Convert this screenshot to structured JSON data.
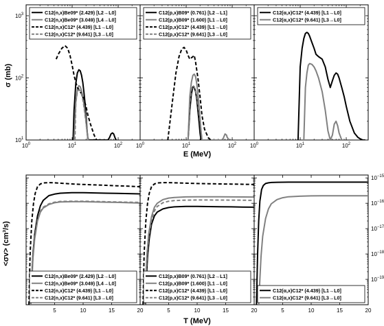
{
  "figure": {
    "top_xlabel": "E (MeV)",
    "top_ylabel": "σ (mb)",
    "bottom_xlabel": "T (MeV)",
    "bottom_ylabel": "<σv> (cm³/s)"
  },
  "colors": {
    "black": "#000000",
    "gray": "#808080"
  },
  "chart_data": [
    {
      "type": "line",
      "panel": "top-left",
      "xscale": "log",
      "yscale": "log",
      "xlim": [
        1,
        300
      ],
      "ylim": [
        10,
        1500
      ],
      "xticks": [
        {
          "v": 1,
          "b": "10",
          "e": "0"
        },
        {
          "v": 10,
          "b": "10",
          "e": "1"
        },
        {
          "v": 100,
          "b": "10",
          "e": "2"
        }
      ],
      "yticks": [
        {
          "v": 10,
          "b": "10",
          "e": "1"
        },
        {
          "v": 100,
          "b": "10",
          "e": "2"
        },
        {
          "v": 1000,
          "b": "10",
          "e": "3"
        }
      ],
      "legend_position": "top",
      "series": [
        {
          "name": "C12(n,x)Be09* (2.429) [L2→L0]",
          "color": "black",
          "dash": "solid",
          "x": [
            10.5,
            11,
            12,
            13,
            14,
            15,
            16,
            17,
            18,
            19,
            20,
            21,
            22,
            60,
            65,
            70,
            75,
            80,
            85,
            90
          ],
          "y": [
            10,
            30,
            80,
            120,
            135,
            130,
            110,
            85,
            60,
            40,
            25,
            15,
            10,
            10,
            11,
            12.5,
            13,
            12.5,
            11,
            10
          ]
        },
        {
          "name": "C12(n,x)Be09* (3.049) [L4→L0]",
          "color": "gray",
          "dash": "solid",
          "x": [
            11,
            12,
            13,
            14,
            15,
            16,
            17,
            18,
            19,
            20,
            21,
            22
          ],
          "y": [
            10,
            40,
            65,
            75,
            72,
            62,
            50,
            38,
            28,
            20,
            14,
            10
          ]
        },
        {
          "name": "C12(n,x)C12* (4.439) [L1→L0]",
          "color": "black",
          "dash": "dash",
          "x": [
            4.5,
            5,
            6,
            7,
            8,
            9,
            10,
            11,
            12,
            13,
            14,
            15,
            16,
            18,
            20,
            22,
            25,
            30,
            34
          ],
          "y": [
            200,
            240,
            300,
            330,
            300,
            230,
            160,
            110,
            85,
            70,
            65,
            60,
            55,
            45,
            35,
            25,
            18,
            12,
            10
          ]
        },
        {
          "name": "C12(n,x)C12* (9.641) [L3→L0]",
          "color": "gray",
          "dash": "dash",
          "x": [
            11.5,
            12,
            13,
            14,
            15,
            16,
            17,
            18,
            19,
            20,
            21,
            22,
            23
          ],
          "y": [
            10,
            40,
            60,
            64,
            62,
            55,
            45,
            35,
            26,
            19,
            14,
            11,
            10
          ]
        }
      ]
    },
    {
      "type": "line",
      "panel": "top-middle",
      "xscale": "log",
      "yscale": "log",
      "xlim": [
        1,
        300
      ],
      "ylim": [
        10,
        1500
      ],
      "xticks": [
        {
          "v": 1,
          "b": "10",
          "e": "0"
        },
        {
          "v": 10,
          "b": "10",
          "e": "1"
        },
        {
          "v": 100,
          "b": "10",
          "e": "2"
        }
      ],
      "yticks": [],
      "legend_position": "top",
      "series": [
        {
          "name": "C12(p,x)B09* (0.761) [L2→L1]",
          "color": "black",
          "dash": "solid",
          "x": [
            11,
            12,
            13,
            14,
            15,
            16,
            17,
            18,
            19,
            20,
            21
          ],
          "y": [
            10,
            30,
            55,
            72,
            70,
            60,
            45,
            30,
            20,
            13,
            10
          ]
        },
        {
          "name": "C12(p,x)B09* (1.600) [L1→L0]",
          "color": "gray",
          "dash": "solid",
          "x": [
            11,
            12,
            13,
            14,
            15,
            16,
            17,
            18,
            19,
            20,
            21,
            22,
            62,
            65,
            70,
            75,
            78,
            82,
            85
          ],
          "y": [
            10,
            50,
            85,
            110,
            115,
            105,
            80,
            55,
            35,
            22,
            14,
            10,
            10,
            11,
            12.5,
            12,
            11,
            10.5,
            10
          ]
        },
        {
          "name": "C12(p,x)C12* (4.439) [L1→L0]",
          "color": "black",
          "dash": "dash",
          "x": [
            4,
            5,
            6,
            7,
            8,
            9,
            10,
            11,
            12,
            13,
            14,
            15,
            16,
            18,
            20,
            22,
            25,
            30,
            34
          ],
          "y": [
            10,
            40,
            120,
            220,
            290,
            310,
            280,
            230,
            200,
            210,
            220,
            230,
            180,
            100,
            50,
            25,
            15,
            11,
            10
          ]
        },
        {
          "name": "C12(p,x)C12* (9.641) [L3→L0]",
          "color": "gray",
          "dash": "dash",
          "x": [
            11,
            12,
            13,
            14,
            15,
            16,
            17,
            18,
            19,
            20,
            21,
            22
          ],
          "y": [
            10,
            40,
            65,
            75,
            72,
            62,
            50,
            38,
            28,
            20,
            14,
            10
          ]
        }
      ]
    },
    {
      "type": "line",
      "panel": "top-right",
      "xscale": "log",
      "yscale": "log",
      "xlim": [
        1,
        300
      ],
      "ylim": [
        10,
        1500
      ],
      "xticks": [
        {
          "v": 1,
          "b": "10",
          "e": "0"
        },
        {
          "v": 10,
          "b": "10",
          "e": "1"
        },
        {
          "v": 100,
          "b": "10",
          "e": "2"
        }
      ],
      "yticks": [],
      "legend_position": "top",
      "series": [
        {
          "name": "C12(α,x)C12* (4.439) [L1→L0]",
          "color": "black",
          "dash": "solid",
          "x": [
            9,
            10,
            11,
            12,
            13,
            14,
            15,
            16,
            18,
            20,
            22,
            25,
            30,
            35,
            40,
            45,
            50,
            55,
            60,
            65,
            70,
            80,
            90,
            100,
            120,
            150,
            180,
            200,
            230,
            260
          ],
          "y": [
            10,
            150,
            300,
            430,
            520,
            540,
            520,
            470,
            370,
            300,
            240,
            220,
            200,
            150,
            95,
            70,
            90,
            110,
            120,
            115,
            100,
            70,
            50,
            35,
            20,
            13,
            11,
            10.5,
            10,
            10
          ]
        },
        {
          "name": "C12(α,x)C12* (9.641) [L3→L0]",
          "color": "gray",
          "dash": "solid",
          "x": [
            12,
            13,
            14,
            15,
            16,
            18,
            20,
            22,
            25,
            30,
            35,
            40,
            45,
            50,
            55,
            60,
            65,
            70,
            80,
            90
          ],
          "y": [
            10,
            70,
            120,
            160,
            170,
            165,
            150,
            130,
            100,
            60,
            30,
            14,
            10,
            12,
            18,
            20,
            17,
            13,
            10,
            10
          ]
        }
      ]
    },
    {
      "type": "line",
      "panel": "bottom-left",
      "xscale": "linear",
      "yscale": "log",
      "xlim": [
        0,
        20
      ],
      "ylim": [
        1e-20,
        1.3e-15
      ],
      "xticks": [
        {
          "v": 5,
          "b": "5"
        },
        {
          "v": 10,
          "b": "10"
        },
        {
          "v": 15,
          "b": "15"
        },
        {
          "v": 20,
          "b": "20"
        }
      ],
      "yticks": [],
      "legend_position": "bottom-right",
      "series": [
        {
          "name": "C12(n,x)Be09* (2.429) [L2→L0]",
          "color": "black",
          "dash": "solid",
          "x": [
            0.8,
            1,
            1.2,
            1.5,
            2,
            2.5,
            3,
            4,
            5,
            6,
            8,
            10,
            12,
            14,
            16,
            18,
            20
          ],
          "y": [
            1e-20,
            1.2e-19,
            1e-18,
            6e-18,
            3.2e-17,
            8e-17,
            1.3e-16,
            2e-16,
            2.3e-16,
            2.5e-16,
            2.6e-16,
            2.6e-16,
            2.55e-16,
            2.5e-16,
            2.45e-16,
            2.4e-16,
            2.35e-16
          ]
        },
        {
          "name": "C12(n,x)Be09* (3.049) [L4→L0]",
          "color": "gray",
          "dash": "solid",
          "x": [
            0.8,
            1,
            1.2,
            1.5,
            2,
            2.5,
            3,
            4,
            5,
            6,
            8,
            10,
            12,
            14,
            16,
            18,
            20
          ],
          "y": [
            1e-20,
            8e-20,
            7e-19,
            4e-18,
            2e-17,
            4.5e-17,
            6.5e-17,
            9e-17,
            1.05e-16,
            1.12e-16,
            1.15e-16,
            1.15e-16,
            1.13e-16,
            1.1e-16,
            1.08e-16,
            1.05e-16,
            1.02e-16
          ]
        },
        {
          "name": "C12(n,x)C12* (4.439) [L1→L0]",
          "color": "black",
          "dash": "dash",
          "x": [
            0.5,
            0.7,
            1,
            1.3,
            1.6,
            2,
            2.5,
            3,
            4,
            5,
            6,
            8,
            10,
            12,
            14,
            16,
            18,
            20
          ],
          "y": [
            1e-20,
            1e-18,
            2e-17,
            1e-16,
            2.5e-16,
            4.5e-16,
            5.8e-16,
            6.3e-16,
            6.5e-16,
            6.4e-16,
            6.2e-16,
            5.8e-16,
            5.5e-16,
            5.3e-16,
            5.1e-16,
            4.9e-16,
            4.7e-16,
            4.5e-16
          ]
        },
        {
          "name": "C12(n,x)C12* (9.641) [L3→L0]",
          "color": "gray",
          "dash": "dash",
          "x": [
            0.8,
            1,
            1.2,
            1.5,
            2,
            2.5,
            3,
            4,
            5,
            6,
            8,
            10,
            12,
            14,
            16,
            18,
            20
          ],
          "y": [
            1e-20,
            9e-20,
            8e-19,
            4.5e-18,
            2.2e-17,
            5e-17,
            7e-17,
            9.5e-17,
            1.1e-16,
            1.18e-16,
            1.2e-16,
            1.2e-16,
            1.18e-16,
            1.15e-16,
            1.12e-16,
            1.1e-16,
            1.08e-16
          ]
        }
      ]
    },
    {
      "type": "line",
      "panel": "bottom-middle",
      "xscale": "linear",
      "yscale": "log",
      "xlim": [
        0,
        20
      ],
      "ylim": [
        1e-20,
        1.3e-15
      ],
      "xticks": [
        {
          "v": 5,
          "b": "5"
        },
        {
          "v": 10,
          "b": "10"
        },
        {
          "v": 15,
          "b": "15"
        },
        {
          "v": 20,
          "b": "20"
        }
      ],
      "yticks": [],
      "legend_position": "bottom-right",
      "series": [
        {
          "name": "C12(p,x)B09* (0.761) [L2→L1]",
          "color": "black",
          "dash": "solid",
          "x": [
            0.9,
            1.1,
            1.3,
            1.6,
            2,
            2.5,
            3,
            4,
            5,
            6,
            8,
            10,
            12,
            14,
            16,
            18,
            20
          ],
          "y": [
            1e-20,
            1e-19,
            8e-19,
            4e-18,
            1.5e-17,
            3.2e-17,
            4.5e-17,
            6e-17,
            6.8e-17,
            7.2e-17,
            7.5e-17,
            7.5e-17,
            7.4e-17,
            7.3e-17,
            7.2e-17,
            7.1e-17,
            7e-17
          ]
        },
        {
          "name": "C12(p,x)B09* (1.600) [L1→L0]",
          "color": "gray",
          "dash": "solid",
          "x": [
            0.8,
            1,
            1.2,
            1.5,
            2,
            2.5,
            3,
            4,
            5,
            6,
            8,
            10,
            12,
            14,
            16,
            18,
            20
          ],
          "y": [
            1e-20,
            1.2e-19,
            1e-18,
            6e-18,
            3e-17,
            7e-17,
            1e-16,
            1.4e-16,
            1.6e-16,
            1.7e-16,
            1.78e-16,
            1.8e-16,
            1.8e-16,
            1.79e-16,
            1.78e-16,
            1.77e-16,
            1.76e-16
          ]
        },
        {
          "name": "C12(p,x)C12* (4.439) [L1→L0]",
          "color": "black",
          "dash": "dash",
          "x": [
            0.5,
            0.7,
            1,
            1.3,
            1.6,
            2,
            2.5,
            3,
            4,
            5,
            6,
            8,
            10,
            12,
            14,
            16,
            18,
            20
          ],
          "y": [
            1e-20,
            1e-18,
            2e-17,
            1e-16,
            2.5e-16,
            4.5e-16,
            5.8e-16,
            6.3e-16,
            6.5e-16,
            6.5e-16,
            6.4e-16,
            6.2e-16,
            6e-16,
            5.9e-16,
            5.8e-16,
            5.7e-16,
            5.6e-16,
            5.5e-16
          ]
        },
        {
          "name": "C12(p,x)C12* (9.641) [L3→L0]",
          "color": "gray",
          "dash": "dash",
          "x": [
            0.8,
            1,
            1.2,
            1.5,
            2,
            2.5,
            3,
            4,
            5,
            6,
            8,
            10,
            12,
            14,
            16,
            18,
            20
          ],
          "y": [
            1e-20,
            9e-20,
            8e-19,
            4.5e-18,
            2.2e-17,
            5e-17,
            7.5e-17,
            1.05e-16,
            1.2e-16,
            1.28e-16,
            1.33e-16,
            1.35e-16,
            1.35e-16,
            1.34e-16,
            1.33e-16,
            1.32e-16,
            1.3e-16
          ]
        }
      ]
    },
    {
      "type": "line",
      "panel": "bottom-right",
      "xscale": "linear",
      "yscale": "log",
      "xlim": [
        0,
        20
      ],
      "ylim": [
        1e-20,
        1.3e-15
      ],
      "xticks": [
        {
          "v": 5,
          "b": "5"
        },
        {
          "v": 10,
          "b": "10"
        },
        {
          "v": 15,
          "b": "15"
        },
        {
          "v": 20,
          "b": "20"
        }
      ],
      "yticks": [
        {
          "v": 1e-15,
          "b": "10",
          "e": "−15"
        },
        {
          "v": 1e-16,
          "b": "10",
          "e": "−16"
        },
        {
          "v": 1e-17,
          "b": "10",
          "e": "−17"
        },
        {
          "v": 1e-18,
          "b": "10",
          "e": "−18"
        },
        {
          "v": 1e-19,
          "b": "10",
          "e": "−19"
        }
      ],
      "legend_position": "bottom-right",
      "series": [
        {
          "name": "C12(α,x)C12* (4.439) [L1→L0]",
          "color": "black",
          "dash": "solid",
          "x": [
            0.4,
            0.6,
            0.8,
            1,
            1.3,
            1.6,
            2,
            2.5,
            3,
            4,
            5,
            6,
            8,
            10,
            12,
            14,
            16,
            18,
            20
          ],
          "y": [
            1e-20,
            1e-18,
            2e-17,
            1.2e-16,
            3.5e-16,
            5e-16,
            6e-16,
            6.4e-16,
            6.6e-16,
            6.7e-16,
            6.75e-16,
            6.8e-16,
            6.8e-16,
            6.8e-16,
            6.8e-16,
            6.8e-16,
            6.8e-16,
            6.8e-16,
            6.8e-16
          ]
        },
        {
          "name": "C12(α,x)C12* (9.641) [L3→L0]",
          "color": "gray",
          "dash": "solid",
          "x": [
            0.8,
            1,
            1.2,
            1.5,
            2,
            2.5,
            3,
            4,
            5,
            6,
            8,
            10,
            12,
            14,
            16,
            18,
            20
          ],
          "y": [
            1e-20,
            1e-19,
            8e-19,
            5e-18,
            2.5e-17,
            6e-17,
            9.5e-17,
            1.4e-16,
            1.65e-16,
            1.8e-16,
            1.9e-16,
            1.95e-16,
            1.97e-16,
            1.98e-16,
            1.98e-16,
            1.98e-16,
            1.98e-16
          ]
        }
      ]
    }
  ]
}
